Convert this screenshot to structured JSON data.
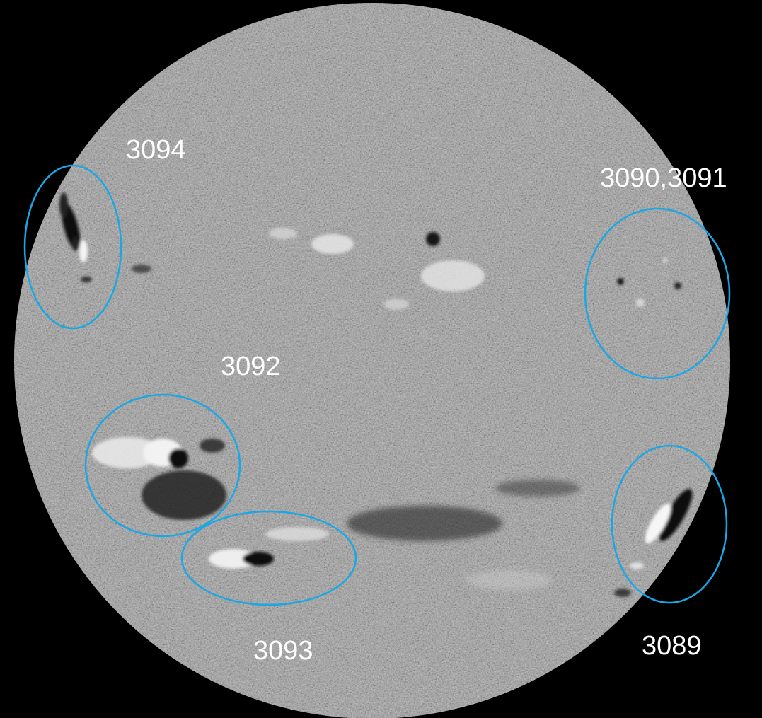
{
  "image": {
    "background_color": "#000000",
    "disk_color": "#8a8a8a",
    "annotation_color": "#1aa7e6"
  },
  "labels": {
    "region_3094": "3094",
    "region_3090_3091": "3090,3091",
    "region_3092": "3092",
    "region_3093": "3093",
    "region_3089": "3089"
  }
}
